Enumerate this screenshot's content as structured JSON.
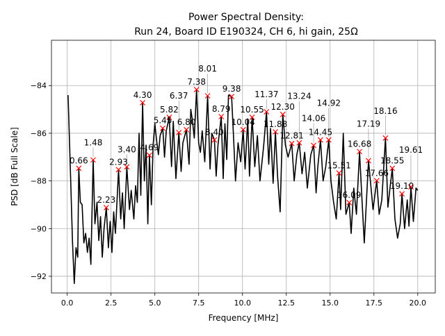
{
  "chart_data": {
    "type": "line",
    "title_line1": "Power Spectral Density:",
    "title_line2": "Run 24, Board ID E190324, CH 6, hi gain, 25Ω",
    "xlabel": "Frequency [MHz]",
    "ylabel": "PSD [dB Full Scale]",
    "xlim": [
      -0.9,
      21.0
    ],
    "ylim": [
      -92.7,
      -82.1
    ],
    "xticks": [
      0.0,
      2.5,
      5.0,
      7.5,
      10.0,
      12.5,
      15.0,
      17.5,
      20.0
    ],
    "xtick_labels": [
      "0.0",
      "2.5",
      "5.0",
      "7.5",
      "10.0",
      "12.5",
      "15.0",
      "17.5",
      "20.0"
    ],
    "yticks": [
      -92,
      -90,
      -88,
      -86,
      -84
    ],
    "ytick_labels": [
      "−92",
      "−90",
      "−88",
      "−86",
      "−84"
    ],
    "grid": true,
    "line_color": "#000000",
    "marker_color": "#ff0000",
    "grid_color": "#b0b0b0",
    "series": [
      {
        "points": [
          [
            0.05,
            -84.4
          ],
          [
            0.12,
            -86.1
          ],
          [
            0.2,
            -88.0
          ],
          [
            0.3,
            -90.5
          ],
          [
            0.4,
            -92.3
          ],
          [
            0.5,
            -90.8
          ],
          [
            0.6,
            -91.2
          ],
          [
            0.66,
            -87.47
          ],
          [
            0.75,
            -88.9
          ],
          [
            0.85,
            -89.0
          ],
          [
            0.95,
            -90.6
          ],
          [
            1.05,
            -90.2
          ],
          [
            1.15,
            -91.0
          ],
          [
            1.25,
            -90.4
          ],
          [
            1.35,
            -91.5
          ],
          [
            1.48,
            -87.12
          ],
          [
            1.58,
            -89.8
          ],
          [
            1.7,
            -88.9
          ],
          [
            1.8,
            -90.5
          ],
          [
            1.9,
            -89.5
          ],
          [
            2.0,
            -91.2
          ],
          [
            2.1,
            -90.0
          ],
          [
            2.23,
            -89.12
          ],
          [
            2.35,
            -90.8
          ],
          [
            2.45,
            -89.7
          ],
          [
            2.55,
            -91.0
          ],
          [
            2.65,
            -89.3
          ],
          [
            2.75,
            -90.2
          ],
          [
            2.93,
            -87.53
          ],
          [
            3.05,
            -89.6
          ],
          [
            3.15,
            -88.5
          ],
          [
            3.25,
            -90.0
          ],
          [
            3.4,
            -87.41
          ],
          [
            3.55,
            -89.2
          ],
          [
            3.65,
            -88.4
          ],
          [
            3.8,
            -89.6
          ],
          [
            3.9,
            -88.2
          ],
          [
            4.0,
            -88.9
          ],
          [
            4.1,
            -86.0
          ],
          [
            4.2,
            -88.6
          ],
          [
            4.3,
            -84.72
          ],
          [
            4.4,
            -88.0
          ],
          [
            4.5,
            -86.5
          ],
          [
            4.6,
            -89.8
          ],
          [
            4.69,
            -86.92
          ],
          [
            4.8,
            -89.0
          ],
          [
            4.9,
            -86.5
          ],
          [
            5.0,
            -85.6
          ],
          [
            5.1,
            -86.3
          ],
          [
            5.2,
            -86.9
          ],
          [
            5.3,
            -86.1
          ],
          [
            5.45,
            -85.79
          ],
          [
            5.55,
            -87.0
          ],
          [
            5.65,
            -85.9
          ],
          [
            5.82,
            -85.33
          ],
          [
            5.95,
            -87.4
          ],
          [
            6.05,
            -85.5
          ],
          [
            6.2,
            -87.9
          ],
          [
            6.37,
            -85.97
          ],
          [
            6.5,
            -87.6
          ],
          [
            6.6,
            -86.4
          ],
          [
            6.8,
            -85.85
          ],
          [
            6.95,
            -87.3
          ],
          [
            7.05,
            -85.0
          ],
          [
            7.15,
            -85.5
          ],
          [
            7.25,
            -86.2
          ],
          [
            7.38,
            -84.17
          ],
          [
            7.5,
            -86.4
          ],
          [
            7.6,
            -86.8
          ],
          [
            7.7,
            -85.9
          ],
          [
            7.85,
            -87.2
          ],
          [
            8.01,
            -84.43
          ],
          [
            8.15,
            -87.5
          ],
          [
            8.25,
            -86.0
          ],
          [
            8.4,
            -86.28
          ],
          [
            8.5,
            -87.8
          ],
          [
            8.6,
            -86.5
          ],
          [
            8.79,
            -85.3
          ],
          [
            8.9,
            -87.9
          ],
          [
            9.0,
            -85.6
          ],
          [
            9.1,
            -87.1
          ],
          [
            9.2,
            -84.4
          ],
          [
            9.38,
            -84.46
          ],
          [
            9.5,
            -86.3
          ],
          [
            9.6,
            -88.0
          ],
          [
            9.75,
            -86.4
          ],
          [
            9.9,
            -87.2
          ],
          [
            10.04,
            -85.85
          ],
          [
            10.15,
            -87.5
          ],
          [
            10.3,
            -85.4
          ],
          [
            10.4,
            -87.8
          ],
          [
            10.55,
            -85.33
          ],
          [
            10.7,
            -87.4
          ],
          [
            10.85,
            -86.1
          ],
          [
            11.0,
            -88.0
          ],
          [
            11.2,
            -86.6
          ],
          [
            11.37,
            -85.1
          ],
          [
            11.5,
            -87.3
          ],
          [
            11.6,
            -85.8
          ],
          [
            11.75,
            -88.1
          ],
          [
            11.88,
            -85.94
          ],
          [
            12.0,
            -87.8
          ],
          [
            12.15,
            -89.3
          ],
          [
            12.3,
            -85.21
          ],
          [
            12.45,
            -86.5
          ],
          [
            12.6,
            -87.0
          ],
          [
            12.81,
            -86.43
          ],
          [
            12.95,
            -88.0
          ],
          [
            13.1,
            -86.9
          ],
          [
            13.24,
            -86.4
          ],
          [
            13.4,
            -87.7
          ],
          [
            13.55,
            -86.8
          ],
          [
            13.7,
            -88.3
          ],
          [
            13.9,
            -86.9
          ],
          [
            14.06,
            -86.51
          ],
          [
            14.2,
            -88.5
          ],
          [
            14.3,
            -87.4
          ],
          [
            14.45,
            -86.28
          ],
          [
            14.6,
            -88.0
          ],
          [
            14.75,
            -87.4
          ],
          [
            14.92,
            -86.28
          ],
          [
            15.05,
            -88.0
          ],
          [
            15.2,
            -88.9
          ],
          [
            15.35,
            -89.6
          ],
          [
            15.51,
            -87.67
          ],
          [
            15.6,
            -89.2
          ],
          [
            15.75,
            -86.0
          ],
          [
            15.9,
            -89.4
          ],
          [
            16.09,
            -88.91
          ],
          [
            16.2,
            -90.2
          ],
          [
            16.35,
            -88.3
          ],
          [
            16.5,
            -89.4
          ],
          [
            16.68,
            -86.77
          ],
          [
            16.8,
            -88.5
          ],
          [
            16.95,
            -90.6
          ],
          [
            17.19,
            -87.15
          ],
          [
            17.3,
            -88.0
          ],
          [
            17.45,
            -89.2
          ],
          [
            17.66,
            -87.99
          ],
          [
            17.8,
            -89.4
          ],
          [
            17.95,
            -88.8
          ],
          [
            18.16,
            -86.2
          ],
          [
            18.3,
            -89.1
          ],
          [
            18.4,
            -88.4
          ],
          [
            18.55,
            -87.47
          ],
          [
            18.7,
            -89.6
          ],
          [
            18.85,
            -90.4
          ],
          [
            19.0,
            -89.8
          ],
          [
            19.1,
            -88.54
          ],
          [
            19.25,
            -90.0
          ],
          [
            19.4,
            -88.8
          ],
          [
            19.5,
            -89.9
          ],
          [
            19.61,
            -88.25
          ],
          [
            19.75,
            -89.7
          ],
          [
            19.9,
            -88.3
          ],
          [
            20.0,
            -88.4
          ]
        ]
      }
    ],
    "peaks": [
      {
        "label": "0.66",
        "x": 0.66,
        "y": -87.47
      },
      {
        "label": "1.48",
        "x": 1.48,
        "y": -87.12
      },
      {
        "label": "2.23",
        "x": 2.23,
        "y": -89.12
      },
      {
        "label": "2.93",
        "x": 2.93,
        "y": -87.53
      },
      {
        "label": "3.40",
        "x": 3.4,
        "y": -87.41
      },
      {
        "label": "4.30",
        "x": 4.3,
        "y": -84.72
      },
      {
        "label": "4.69",
        "x": 4.69,
        "y": -86.92
      },
      {
        "label": "5.45",
        "x": 5.45,
        "y": -85.79
      },
      {
        "label": "5.82",
        "x": 5.82,
        "y": -85.33
      },
      {
        "label": "6.37",
        "x": 6.37,
        "y": -85.97
      },
      {
        "label": "6.80",
        "x": 6.8,
        "y": -85.85
      },
      {
        "label": "7.38",
        "x": 7.38,
        "y": -84.17
      },
      {
        "label": "8.01",
        "x": 8.01,
        "y": -84.43
      },
      {
        "label": "8.40",
        "x": 8.4,
        "y": -86.28
      },
      {
        "label": "8.79",
        "x": 8.79,
        "y": -85.3
      },
      {
        "label": "9.38",
        "x": 9.38,
        "y": -84.46
      },
      {
        "label": "10.04",
        "x": 10.04,
        "y": -85.85
      },
      {
        "label": "10.55",
        "x": 10.55,
        "y": -85.33
      },
      {
        "label": "11.37",
        "x": 11.37,
        "y": -85.1
      },
      {
        "label": "11.88",
        "x": 11.88,
        "y": -85.94
      },
      {
        "label": "12.30",
        "x": 12.3,
        "y": -85.21
      },
      {
        "label": "12.81",
        "x": 12.81,
        "y": -86.43
      },
      {
        "label": "13.24",
        "x": 13.24,
        "y": -86.4
      },
      {
        "label": "14.06",
        "x": 14.06,
        "y": -86.51
      },
      {
        "label": "14.45",
        "x": 14.45,
        "y": -86.28
      },
      {
        "label": "14.92",
        "x": 14.92,
        "y": -86.28
      },
      {
        "label": "15.51",
        "x": 15.51,
        "y": -87.67
      },
      {
        "label": "16.09",
        "x": 16.09,
        "y": -88.91
      },
      {
        "label": "16.68",
        "x": 16.68,
        "y": -86.77
      },
      {
        "label": "17.19",
        "x": 17.19,
        "y": -87.15
      },
      {
        "label": "17.66",
        "x": 17.66,
        "y": -87.99
      },
      {
        "label": "18.16",
        "x": 18.16,
        "y": -86.2
      },
      {
        "label": "18.55",
        "x": 18.55,
        "y": -87.47
      },
      {
        "label": "19.10",
        "x": 19.1,
        "y": -88.54
      },
      {
        "label": "19.61",
        "x": 19.61,
        "y": -88.25
      }
    ]
  }
}
